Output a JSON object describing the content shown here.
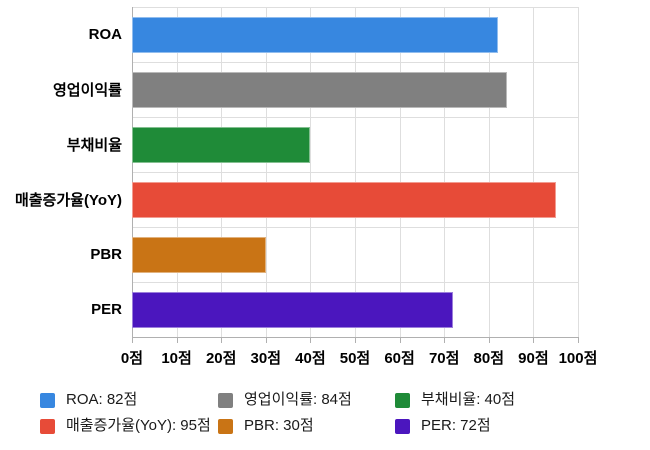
{
  "chart_data": {
    "type": "bar",
    "orientation": "horizontal",
    "title": "",
    "xlabel": "",
    "ylabel": "",
    "xlim": [
      0,
      100
    ],
    "grid": true,
    "legend_position": "bottom",
    "unit": "점",
    "x_tick_values": [
      0,
      10,
      20,
      30,
      40,
      50,
      60,
      70,
      80,
      90,
      100
    ],
    "x_tick_labels": [
      "0점",
      "10점",
      "20점",
      "30점",
      "40점",
      "50점",
      "60점",
      "70점",
      "80점",
      "90점",
      "100점"
    ],
    "categories": [
      "ROA",
      "영업이익률",
      "부채비율",
      "매출증가율(YoY)",
      "PBR",
      "PER"
    ],
    "values": [
      82,
      84,
      40,
      95,
      30,
      72
    ],
    "series": [
      {
        "category": "ROA",
        "value": 82,
        "color": "#3787E0",
        "legend_label": "ROA: 82점"
      },
      {
        "category": "영업이익률",
        "value": 84,
        "color": "#808080",
        "legend_label": "영업이익률: 84점"
      },
      {
        "category": "부채비율",
        "value": 40,
        "color": "#1F8B38",
        "legend_label": "부채비율: 40점"
      },
      {
        "category": "매출증가율(YoY)",
        "value": 95,
        "color": "#E74B38",
        "legend_label": "매출증가율(YoY): 95점"
      },
      {
        "category": "PBR",
        "value": 30,
        "color": "#C97415",
        "legend_label": "PBR: 30점"
      },
      {
        "category": "PER",
        "value": 72,
        "color": "#4B16BE",
        "legend_label": "PER: 72점"
      }
    ],
    "colors": {
      "gridline": "#DEDEDE",
      "axis_line": "#B0B0B0",
      "label_text": "#000000",
      "legend_text": "#1A1A1A"
    }
  }
}
